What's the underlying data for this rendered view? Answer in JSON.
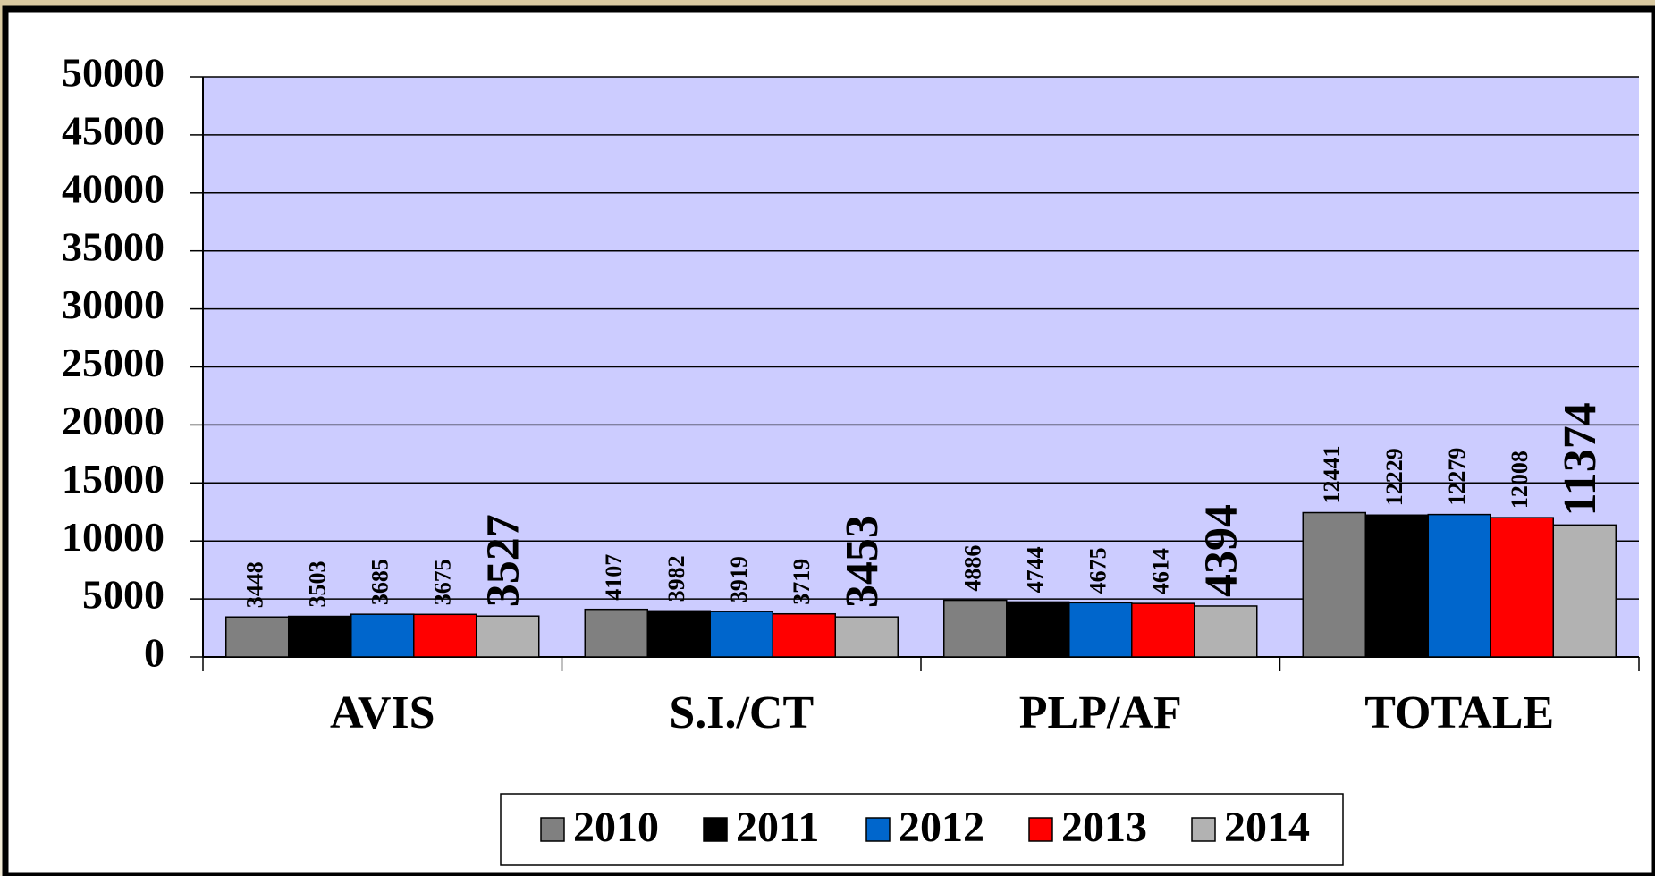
{
  "chart_data": {
    "type": "bar",
    "categories": [
      "AVIS",
      "S.I./CT",
      "PLP/AF",
      "TOTALE"
    ],
    "series": [
      {
        "name": "2010",
        "color": "#808080",
        "values": [
          3448,
          4107,
          4886,
          12441
        ]
      },
      {
        "name": "2011",
        "color": "#000000",
        "values": [
          3503,
          3982,
          4744,
          12229
        ]
      },
      {
        "name": "2012",
        "color": "#0066cc",
        "values": [
          3685,
          3919,
          4675,
          12279
        ]
      },
      {
        "name": "2013",
        "color": "#ff0000",
        "values": [
          3675,
          3719,
          4614,
          12008
        ]
      },
      {
        "name": "2014",
        "color": "#b2b2b2",
        "values": [
          3527,
          3453,
          4394,
          11374
        ]
      }
    ],
    "ylim": [
      0,
      50000
    ],
    "yticks": [
      0,
      5000,
      10000,
      15000,
      20000,
      25000,
      30000,
      35000,
      40000,
      45000,
      50000
    ],
    "grid": true,
    "legend": "bottom"
  }
}
